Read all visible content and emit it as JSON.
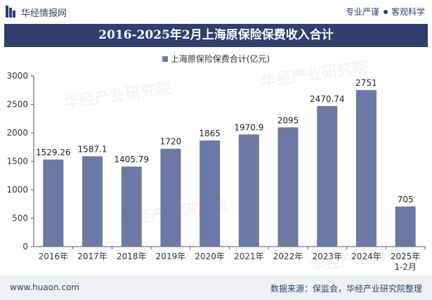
{
  "header": {
    "brand_name": "华经情报网",
    "slogan_left": "专业严谨",
    "slogan_right": "客观科学"
  },
  "footer": {
    "url": "www.huaon.com",
    "source": "数据来源：保监会，华经产业研究院整理"
  },
  "watermark": {
    "text": "华经产业研究院"
  },
  "colors": {
    "bar": "#6b79a4",
    "title_bg": "#2f3f6e",
    "brand": "#2d3f6c"
  },
  "chart_data": {
    "type": "bar",
    "title": "2016-2025年2月上海原保险保费收入合计",
    "categories": [
      "2016年",
      "2017年",
      "2018年",
      "2019年",
      "2020年",
      "2021年",
      "2022年",
      "2023年",
      "2024年",
      "2025年\n1-2月"
    ],
    "series": [
      {
        "name": "上海原保险保费合计(亿元)",
        "values": [
          1529.26,
          1587.1,
          1405.79,
          1720,
          1865,
          1970.9,
          2095,
          2470.74,
          2751,
          705
        ],
        "labels": [
          "1529.26",
          "1587.1",
          "1405.79",
          "1720",
          "1865",
          "1970.9",
          "2095",
          "2470.74",
          "2751",
          "705"
        ]
      }
    ],
    "ylim": [
      0,
      3000
    ],
    "yticks": [
      0,
      500,
      1000,
      1500,
      2000,
      2500,
      3000
    ],
    "legend": "top-center",
    "grid": false
  }
}
